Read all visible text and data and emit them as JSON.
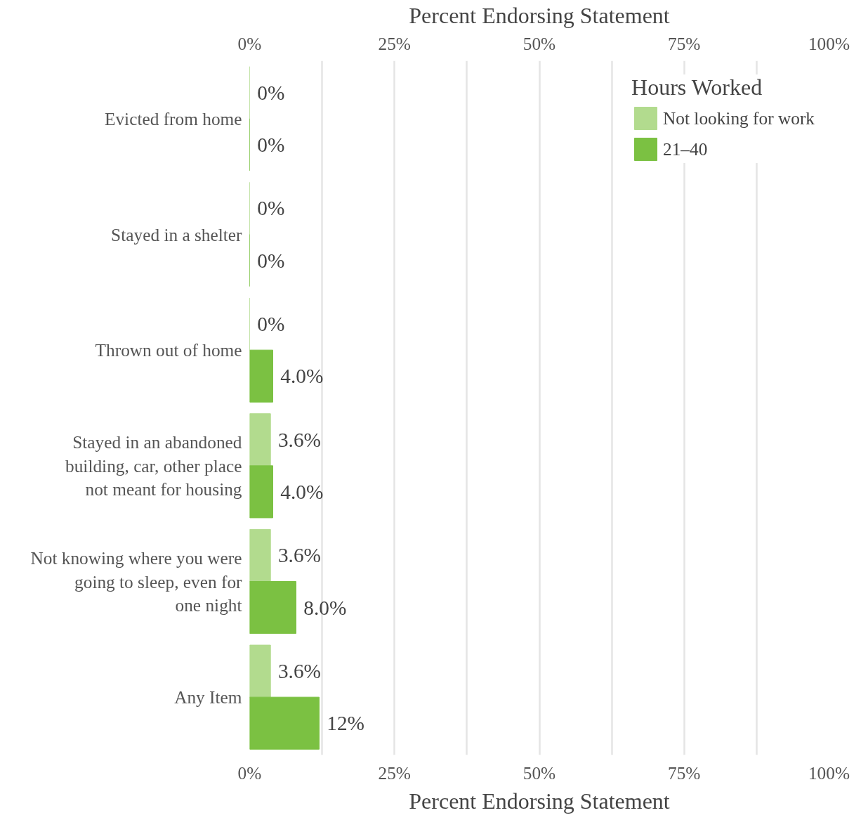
{
  "chart_data": {
    "type": "bar",
    "orientation": "horizontal",
    "categories": [
      "Evicted from home",
      "Stayed in a shelter",
      "Thrown out of home",
      "Stayed in an abandoned building, car, other place not meant for housing",
      "Not knowing where you were going to sleep, even for one night",
      "Any Item"
    ],
    "series": [
      {
        "name": "Not looking for work",
        "color": "#b2db8e",
        "values": [
          0,
          0,
          0,
          3.6,
          3.6,
          3.6
        ],
        "value_labels": [
          "0%",
          "0%",
          "0%",
          "3.6%",
          "3.6%",
          "3.6%"
        ]
      },
      {
        "name": "21–40",
        "color": "#7bc142",
        "values": [
          0,
          0,
          4.0,
          4.0,
          8.0,
          12
        ],
        "value_labels": [
          "0%",
          "0%",
          "4.0%",
          "4.0%",
          "8.0%",
          "12%"
        ]
      }
    ],
    "xlabel": "Percent Endorsing Statement",
    "x2label": "Percent Endorsing Statement",
    "xlim": [
      0,
      100
    ],
    "x2lim": [
      0,
      100
    ],
    "xticks": [
      {
        "value": 0,
        "label": "0%"
      },
      {
        "value": 12.5,
        "label": null
      },
      {
        "value": 25,
        "label": "25%"
      },
      {
        "value": 37.5,
        "label": null
      },
      {
        "value": 50,
        "label": "50%"
      },
      {
        "value": 62.5,
        "label": null
      },
      {
        "value": 75,
        "label": "75%"
      },
      {
        "value": 87.5,
        "label": null
      },
      {
        "value": 100,
        "label": "100%"
      }
    ],
    "x2ticks": [
      {
        "value": 0,
        "label": "0%"
      },
      {
        "value": 25,
        "label": "25%"
      },
      {
        "value": 50,
        "label": "50%"
      },
      {
        "value": 75,
        "label": "75%"
      },
      {
        "value": 100,
        "label": "100%"
      }
    ],
    "grid": "x",
    "legend": "top right",
    "legend_title": "Hours Worked"
  }
}
